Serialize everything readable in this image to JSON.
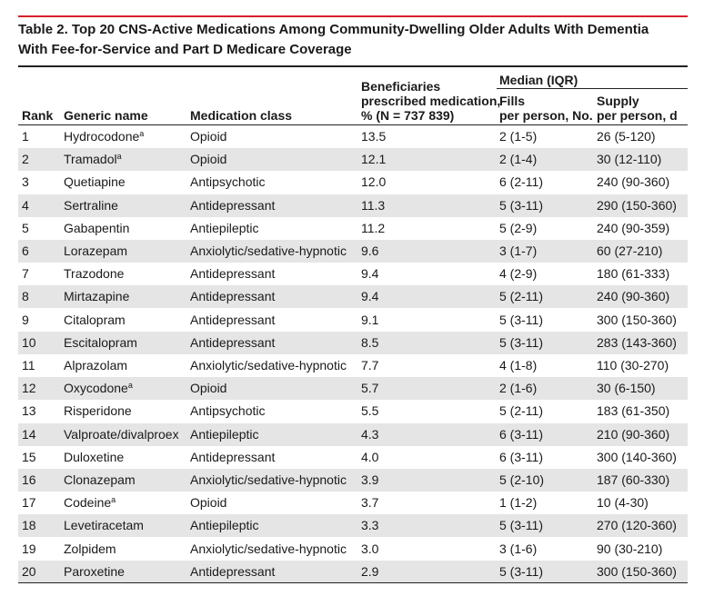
{
  "title": {
    "line1": "Table 2. Top 20 CNS-Active Medications Among Community-Dwelling Older Adults With Dementia",
    "line2": "With Fee-for-Service and Part D Medicare Coverage"
  },
  "headers": {
    "rank": "Rank",
    "generic_name": "Generic name",
    "medication_class": "Medication class",
    "beneficiaries_line1": "Beneficiaries",
    "beneficiaries_line2": "prescribed medication,",
    "beneficiaries_line3": "% (N = 737 839)",
    "median_iqr": "Median (IQR)",
    "fills_line1": "Fills",
    "fills_line2": "per person, No.",
    "supply_line1": "Supply",
    "supply_line2": "per person, d"
  },
  "rows": [
    {
      "rank": "1",
      "name": "Hydrocodone",
      "footnote": "a",
      "class": "Opioid",
      "pct": "13.5",
      "fills": "2 (1-5)",
      "supply": "26 (5-120)"
    },
    {
      "rank": "2",
      "name": "Tramadol",
      "footnote": "a",
      "class": "Opioid",
      "pct": "12.1",
      "fills": "2 (1-4)",
      "supply": "30 (12-110)"
    },
    {
      "rank": "3",
      "name": "Quetiapine",
      "footnote": "",
      "class": "Antipsychotic",
      "pct": "12.0",
      "fills": "6 (2-11)",
      "supply": "240 (90-360)"
    },
    {
      "rank": "4",
      "name": "Sertraline",
      "footnote": "",
      "class": "Antidepressant",
      "pct": "11.3",
      "fills": "5 (3-11)",
      "supply": "290 (150-360)"
    },
    {
      "rank": "5",
      "name": "Gabapentin",
      "footnote": "",
      "class": "Antiepileptic",
      "pct": "11.2",
      "fills": "5 (2-9)",
      "supply": "240 (90-359)"
    },
    {
      "rank": "6",
      "name": "Lorazepam",
      "footnote": "",
      "class": "Anxiolytic/sedative-hypnotic",
      "pct": "9.6",
      "fills": "3 (1-7)",
      "supply": "60 (27-210)"
    },
    {
      "rank": "7",
      "name": "Trazodone",
      "footnote": "",
      "class": "Antidepressant",
      "pct": "9.4",
      "fills": "4 (2-9)",
      "supply": "180 (61-333)"
    },
    {
      "rank": "8",
      "name": "Mirtazapine",
      "footnote": "",
      "class": "Antidepressant",
      "pct": "9.4",
      "fills": "5 (2-11)",
      "supply": "240 (90-360)"
    },
    {
      "rank": "9",
      "name": "Citalopram",
      "footnote": "",
      "class": "Antidepressant",
      "pct": "9.1",
      "fills": "5 (3-11)",
      "supply": "300 (150-360)"
    },
    {
      "rank": "10",
      "name": "Escitalopram",
      "footnote": "",
      "class": "Antidepressant",
      "pct": "8.5",
      "fills": "5 (3-11)",
      "supply": "283 (143-360)"
    },
    {
      "rank": "11",
      "name": "Alprazolam",
      "footnote": "",
      "class": "Anxiolytic/sedative-hypnotic",
      "pct": "7.7",
      "fills": "4 (1-8)",
      "supply": "110 (30-270)"
    },
    {
      "rank": "12",
      "name": "Oxycodone",
      "footnote": "a",
      "class": "Opioid",
      "pct": "5.7",
      "fills": "2 (1-6)",
      "supply": "30 (6-150)"
    },
    {
      "rank": "13",
      "name": "Risperidone",
      "footnote": "",
      "class": "Antipsychotic",
      "pct": "5.5",
      "fills": "5 (2-11)",
      "supply": "183 (61-350)"
    },
    {
      "rank": "14",
      "name": "Valproate/divalproex",
      "footnote": "",
      "class": "Antiepileptic",
      "pct": "4.3",
      "fills": "6 (3-11)",
      "supply": "210 (90-360)"
    },
    {
      "rank": "15",
      "name": "Duloxetine",
      "footnote": "",
      "class": "Antidepressant",
      "pct": "4.0",
      "fills": "6 (3-11)",
      "supply": "300 (140-360)"
    },
    {
      "rank": "16",
      "name": "Clonazepam",
      "footnote": "",
      "class": "Anxiolytic/sedative-hypnotic",
      "pct": "3.9",
      "fills": "5 (2-10)",
      "supply": "187 (60-330)"
    },
    {
      "rank": "17",
      "name": "Codeine",
      "footnote": "a",
      "class": "Opioid",
      "pct": "3.7",
      "fills": "1 (1-2)",
      "supply": "10 (4-30)"
    },
    {
      "rank": "18",
      "name": "Levetiracetam",
      "footnote": "",
      "class": "Antiepileptic",
      "pct": "3.3",
      "fills": "5 (3-11)",
      "supply": "270 (120-360)"
    },
    {
      "rank": "19",
      "name": "Zolpidem",
      "footnote": "",
      "class": "Anxiolytic/sedative-hypnotic",
      "pct": "3.0",
      "fills": "3 (1-6)",
      "supply": "90 (30-210)"
    },
    {
      "rank": "20",
      "name": "Paroxetine",
      "footnote": "",
      "class": "Antidepressant",
      "pct": "2.9",
      "fills": "5 (3-11)",
      "supply": "300 (150-360)"
    }
  ],
  "colors": {
    "accent_bar": "#d8202a",
    "row_shade": "#e5e5e5",
    "text": "#1a1a1a"
  }
}
